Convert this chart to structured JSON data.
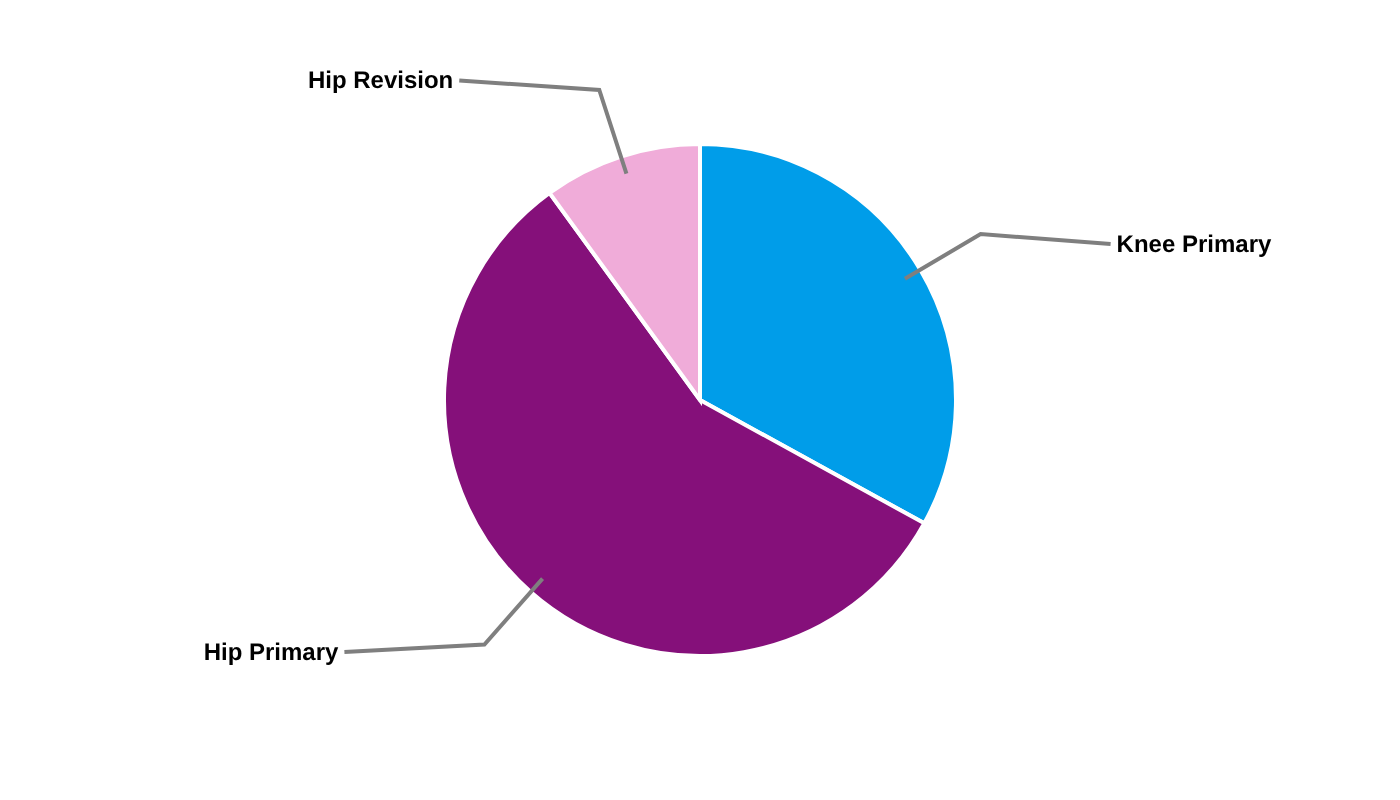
{
  "chart_data": {
    "type": "pie",
    "categories": [
      "Knee Primary",
      "Hip Primary",
      "Hip Revision"
    ],
    "values": [
      33,
      57,
      10
    ],
    "colors": [
      "#009de9",
      "#85107a",
      "#f0acd9"
    ],
    "legend": false
  }
}
